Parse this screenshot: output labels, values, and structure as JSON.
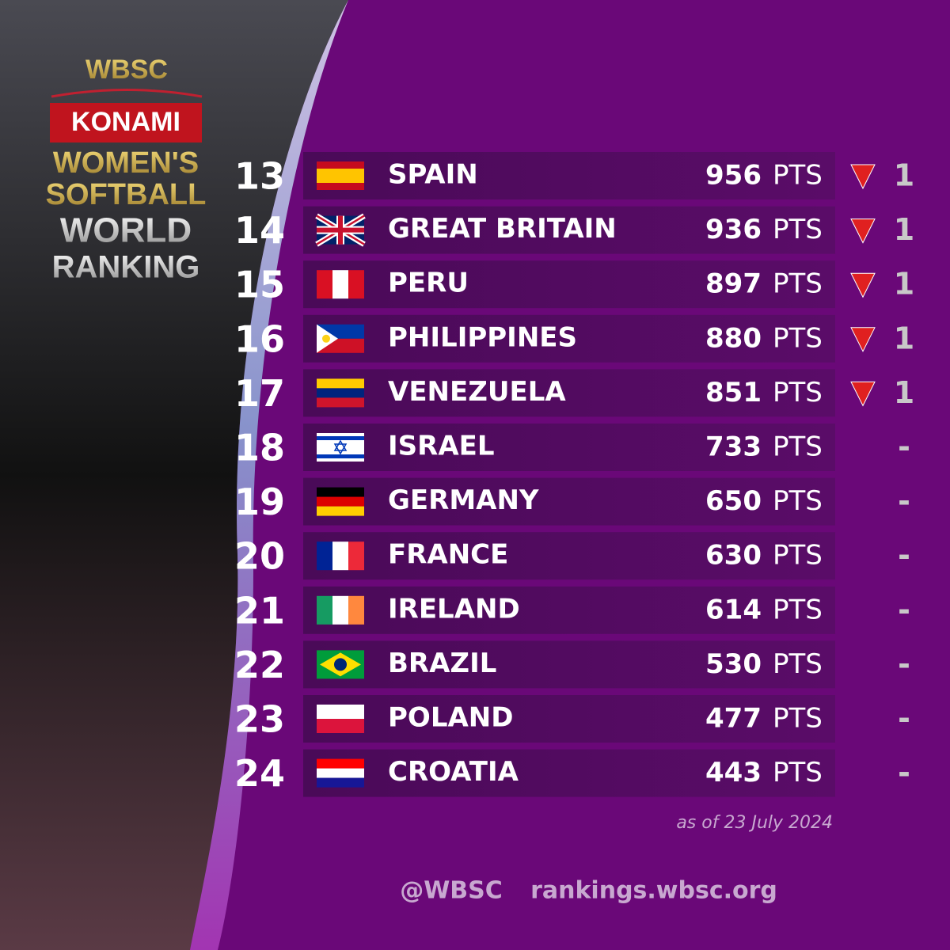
{
  "logo": {
    "org": "WBSC",
    "sponsor": "KONAMI",
    "line1": "WOMEN'S",
    "line2": "SOFTBALL",
    "line3": "WORLD",
    "line4": "RANKING"
  },
  "points_unit": "PTS",
  "rows": [
    {
      "rank": 13,
      "country": "SPAIN",
      "points": 956,
      "trend": "down",
      "change": "1"
    },
    {
      "rank": 14,
      "country": "GREAT BRITAIN",
      "points": 936,
      "trend": "down",
      "change": "1"
    },
    {
      "rank": 15,
      "country": "PERU",
      "points": 897,
      "trend": "down",
      "change": "1"
    },
    {
      "rank": 16,
      "country": "PHILIPPINES",
      "points": 880,
      "trend": "down",
      "change": "1"
    },
    {
      "rank": 17,
      "country": "VENEZUELA",
      "points": 851,
      "trend": "down",
      "change": "1"
    },
    {
      "rank": 18,
      "country": "ISRAEL",
      "points": 733,
      "change": "-"
    },
    {
      "rank": 19,
      "country": "GERMANY",
      "points": 650,
      "change": "-"
    },
    {
      "rank": 20,
      "country": "FRANCE",
      "points": 630,
      "change": "-"
    },
    {
      "rank": 21,
      "country": "IRELAND",
      "points": 614,
      "change": "-"
    },
    {
      "rank": 22,
      "country": "BRAZIL",
      "points": 530,
      "change": "-"
    },
    {
      "rank": 23,
      "country": "POLAND",
      "points": 477,
      "change": "-"
    },
    {
      "rank": 24,
      "country": "CROATIA",
      "points": 443,
      "change": "-"
    }
  ],
  "footer": {
    "date": "as of 23 July 2024",
    "handle": "@WBSC",
    "website": "rankings.wbsc.org"
  }
}
